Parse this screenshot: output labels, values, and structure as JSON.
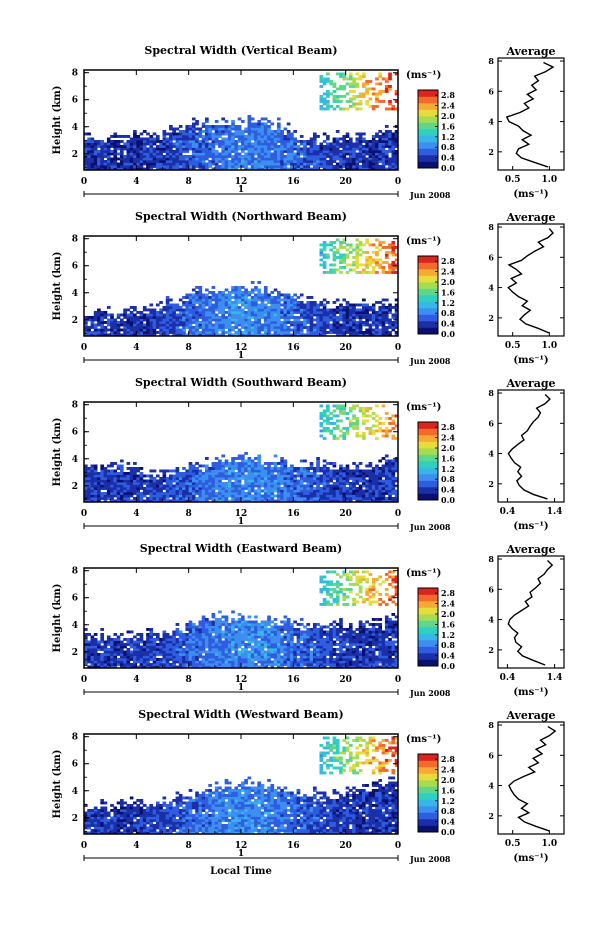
{
  "figure": {
    "x_axis_label": "Local Time",
    "date_label": "Jun 2008",
    "day_marker": "1",
    "height_axis_label": "Height (km)",
    "unit_label": "(ms⁻¹)",
    "avg_title": "Average",
    "avg_xlabel": "(ms⁻¹)"
  },
  "colormap": [
    "#0b1070",
    "#1a2fa8",
    "#2f5de0",
    "#3c8ef0",
    "#38b6e8",
    "#2ed0c0",
    "#5fd68a",
    "#a8dc50",
    "#e6dc3c",
    "#f7a934",
    "#f36a2c",
    "#d92420"
  ],
  "chart_data": [
    {
      "type": "heatmap",
      "title": "Spectral Width (Vertical Beam)",
      "xlabel": "",
      "ylabel": "Height (km)",
      "x_ticks": [
        "0",
        "4",
        "8",
        "12",
        "16",
        "20",
        "0"
      ],
      "x_range": [
        0,
        24
      ],
      "y_ticks": [
        "2",
        "4",
        "6",
        "8"
      ],
      "y_range": [
        0.8,
        8.2
      ],
      "colorbar": {
        "label": "(ms⁻¹)",
        "ticks": [
          "0.0",
          "0.4",
          "0.8",
          "1.2",
          "1.6",
          "2.0",
          "2.4",
          "2.8"
        ],
        "range": [
          0,
          3.0
        ]
      },
      "mean_width_by_hour": [
        0.4,
        0.39,
        0.38,
        0.38,
        0.39,
        0.42,
        0.47,
        0.53,
        0.6,
        0.67,
        0.73,
        0.77,
        0.78,
        0.77,
        0.73,
        0.67,
        0.6,
        0.53,
        0.47,
        0.42,
        0.39,
        0.38,
        0.38,
        0.39
      ],
      "echo_top_km_by_hour": [
        3.0,
        3.0,
        3.0,
        3.0,
        3.0,
        3.1,
        3.4,
        3.6,
        3.9,
        4.0,
        4.1,
        4.1,
        4.2,
        4.0,
        3.9,
        3.6,
        3.2,
        3.0,
        3.0,
        3.0,
        3.0,
        3.0,
        3.3,
        3.7
      ],
      "upper_echo": {
        "hours": [
          18.0,
          24.0
        ],
        "heights_km": [
          5.2,
          8.0
        ],
        "width_ms": [
          1.2,
          2.9
        ]
      },
      "average_profile": {
        "title": "Average",
        "xlabel": "(ms⁻¹)",
        "x_ticks": [
          "0.5",
          "1.0"
        ],
        "x_range": [
          0.3,
          1.2
        ],
        "y_ticks": [
          "2",
          "4",
          "6",
          "8"
        ],
        "heights_km": [
          1.0,
          1.3,
          1.6,
          1.9,
          2.2,
          2.5,
          2.8,
          3.1,
          3.4,
          3.7,
          4.0,
          4.3,
          4.6,
          4.9,
          5.2,
          5.5,
          5.8,
          6.1,
          6.4,
          6.7,
          7.0,
          7.3,
          7.6,
          7.9
        ],
        "width_ms": [
          0.98,
          0.8,
          0.62,
          0.55,
          0.58,
          0.72,
          0.63,
          0.75,
          0.64,
          0.58,
          0.45,
          0.42,
          0.6,
          0.72,
          0.66,
          0.78,
          0.7,
          0.82,
          0.76,
          0.85,
          0.8,
          0.95,
          1.05,
          0.92
        ]
      }
    },
    {
      "type": "heatmap",
      "title": "Spectral Width (Northward Beam)",
      "xlabel": "",
      "ylabel": "Height (km)",
      "x_ticks": [
        "0",
        "4",
        "8",
        "12",
        "16",
        "20",
        "0"
      ],
      "x_range": [
        0,
        24
      ],
      "y_ticks": [
        "2",
        "4",
        "6",
        "8"
      ],
      "y_range": [
        0.8,
        8.2
      ],
      "colorbar": {
        "label": "(ms⁻¹)",
        "ticks": [
          "0.0",
          "0.4",
          "0.8",
          "1.2",
          "1.6",
          "2.0",
          "2.4",
          "2.8"
        ],
        "range": [
          0,
          3.0
        ]
      },
      "mean_width_by_hour": [
        0.42,
        0.4,
        0.39,
        0.39,
        0.41,
        0.45,
        0.51,
        0.58,
        0.66,
        0.73,
        0.79,
        0.83,
        0.84,
        0.82,
        0.77,
        0.7,
        0.62,
        0.55,
        0.48,
        0.43,
        0.4,
        0.39,
        0.4,
        0.41
      ],
      "echo_top_km_by_hour": [
        2.3,
        2.3,
        2.3,
        2.4,
        2.5,
        2.7,
        3.0,
        3.4,
        3.8,
        4.0,
        4.0,
        4.1,
        4.2,
        4.1,
        3.9,
        3.6,
        3.4,
        3.2,
        3.0,
        3.0,
        3.0,
        3.0,
        3.1,
        3.3
      ],
      "upper_echo": {
        "hours": [
          18.0,
          24.0
        ],
        "heights_km": [
          5.5,
          8.0
        ],
        "width_ms": [
          1.2,
          2.8
        ]
      },
      "average_profile": {
        "title": "Average",
        "xlabel": "(ms⁻¹)",
        "x_ticks": [
          "0.5",
          "1.0"
        ],
        "x_range": [
          0.3,
          1.2
        ],
        "y_ticks": [
          "2",
          "4",
          "6",
          "8"
        ],
        "heights_km": [
          1.0,
          1.3,
          1.6,
          1.9,
          2.2,
          2.5,
          2.8,
          3.1,
          3.4,
          3.7,
          4.0,
          4.3,
          4.6,
          4.9,
          5.2,
          5.5,
          5.8,
          6.1,
          6.4,
          6.7,
          7.0,
          7.3,
          7.6,
          7.9
        ],
        "width_ms": [
          1.0,
          0.85,
          0.68,
          0.6,
          0.66,
          0.74,
          0.63,
          0.7,
          0.58,
          0.5,
          0.44,
          0.55,
          0.48,
          0.62,
          0.55,
          0.45,
          0.62,
          0.7,
          0.8,
          0.92,
          0.85,
          0.98,
          1.05,
          1.0
        ]
      }
    },
    {
      "type": "heatmap",
      "title": "Spectral Width (Southward Beam)",
      "xlabel": "",
      "ylabel": "Height (km)",
      "x_ticks": [
        "0",
        "4",
        "8",
        "12",
        "16",
        "20",
        "0"
      ],
      "x_range": [
        0,
        24
      ],
      "y_ticks": [
        "2",
        "4",
        "6",
        "8"
      ],
      "y_range": [
        0.8,
        8.2
      ],
      "colorbar": {
        "label": "(ms⁻¹)",
        "ticks": [
          "0.0",
          "0.4",
          "0.8",
          "1.2",
          "1.6",
          "2.0",
          "2.4",
          "2.8"
        ],
        "range": [
          0,
          3.0
        ]
      },
      "mean_width_by_hour": [
        0.45,
        0.43,
        0.42,
        0.42,
        0.44,
        0.48,
        0.54,
        0.61,
        0.68,
        0.75,
        0.8,
        0.83,
        0.84,
        0.82,
        0.78,
        0.72,
        0.65,
        0.58,
        0.51,
        0.46,
        0.43,
        0.42,
        0.43,
        0.44
      ],
      "echo_top_km_by_hour": [
        3.2,
        3.3,
        3.3,
        3.2,
        2.9,
        2.7,
        2.8,
        3.0,
        3.2,
        3.4,
        3.6,
        3.8,
        3.9,
        3.7,
        3.6,
        3.5,
        3.5,
        3.5,
        3.4,
        3.3,
        3.3,
        3.3,
        3.5,
        3.8
      ],
      "upper_echo": {
        "hours": [
          18.0,
          24.0
        ],
        "heights_km": [
          5.5,
          8.0
        ],
        "width_ms": [
          1.2,
          2.6
        ]
      },
      "average_profile": {
        "title": "Average",
        "xlabel": "(ms⁻¹)",
        "x_ticks": [
          "0.4",
          "1.4"
        ],
        "x_range": [
          0.2,
          1.6
        ],
        "y_ticks": [
          "2",
          "4",
          "6",
          "8"
        ],
        "heights_km": [
          1.0,
          1.3,
          1.6,
          1.9,
          2.2,
          2.5,
          2.8,
          3.1,
          3.4,
          3.7,
          4.0,
          4.3,
          4.6,
          4.9,
          5.2,
          5.5,
          5.8,
          6.1,
          6.4,
          6.7,
          7.0,
          7.3,
          7.6,
          7.9
        ],
        "width_ms": [
          1.25,
          0.95,
          0.75,
          0.65,
          0.6,
          0.7,
          0.62,
          0.68,
          0.55,
          0.48,
          0.42,
          0.5,
          0.62,
          0.75,
          0.7,
          0.82,
          0.88,
          0.95,
          1.05,
          1.1,
          1.02,
          1.2,
          1.3,
          1.2
        ]
      }
    },
    {
      "type": "heatmap",
      "title": "Spectral Width (Eastward Beam)",
      "xlabel": "",
      "ylabel": "Height (km)",
      "x_ticks": [
        "0",
        "4",
        "8",
        "12",
        "16",
        "20",
        "0"
      ],
      "x_range": [
        0,
        24
      ],
      "y_ticks": [
        "2",
        "4",
        "6",
        "8"
      ],
      "y_range": [
        0.8,
        8.2
      ],
      "colorbar": {
        "label": "(ms⁻¹)",
        "ticks": [
          "0.0",
          "0.4",
          "0.8",
          "1.2",
          "1.6",
          "2.0",
          "2.4",
          "2.8"
        ],
        "range": [
          0,
          3.0
        ]
      },
      "mean_width_by_hour": [
        0.44,
        0.42,
        0.41,
        0.41,
        0.43,
        0.47,
        0.53,
        0.6,
        0.68,
        0.75,
        0.81,
        0.85,
        0.86,
        0.84,
        0.79,
        0.72,
        0.64,
        0.57,
        0.5,
        0.45,
        0.42,
        0.41,
        0.42,
        0.43
      ],
      "echo_top_km_by_hour": [
        3.0,
        3.0,
        2.9,
        2.9,
        3.0,
        3.2,
        3.4,
        3.6,
        3.9,
        4.2,
        4.3,
        4.3,
        4.3,
        4.2,
        4.1,
        4.0,
        3.9,
        3.8,
        3.8,
        3.8,
        3.8,
        3.9,
        4.0,
        4.2
      ],
      "upper_echo": {
        "hours": [
          18.0,
          24.0
        ],
        "heights_km": [
          5.5,
          8.0
        ],
        "width_ms": [
          1.2,
          2.8
        ]
      },
      "average_profile": {
        "title": "Average",
        "xlabel": "(ms⁻¹)",
        "x_ticks": [
          "0.4",
          "1.4"
        ],
        "x_range": [
          0.2,
          1.6
        ],
        "y_ticks": [
          "2",
          "4",
          "6",
          "8"
        ],
        "heights_km": [
          1.0,
          1.3,
          1.6,
          1.9,
          2.2,
          2.5,
          2.8,
          3.1,
          3.4,
          3.7,
          4.0,
          4.3,
          4.6,
          4.9,
          5.2,
          5.5,
          5.8,
          6.1,
          6.4,
          6.7,
          7.0,
          7.3,
          7.6,
          7.9
        ],
        "width_ms": [
          1.2,
          0.95,
          0.72,
          0.62,
          0.7,
          0.58,
          0.55,
          0.62,
          0.5,
          0.42,
          0.45,
          0.55,
          0.7,
          0.85,
          0.78,
          0.92,
          0.88,
          1.0,
          1.1,
          1.05,
          1.18,
          1.25,
          1.35,
          1.25
        ]
      }
    },
    {
      "type": "heatmap",
      "title": "Spectral Width (Westward Beam)",
      "xlabel": "Local Time",
      "ylabel": "Height (km)",
      "x_ticks": [
        "0",
        "4",
        "8",
        "12",
        "16",
        "20",
        "0"
      ],
      "x_range": [
        0,
        24
      ],
      "y_ticks": [
        "2",
        "4",
        "6",
        "8"
      ],
      "y_range": [
        0.8,
        8.2
      ],
      "colorbar": {
        "label": "(ms⁻¹)",
        "ticks": [
          "0.0",
          "0.4",
          "0.8",
          "1.2",
          "1.6",
          "2.0",
          "2.4",
          "2.8"
        ],
        "range": [
          0,
          3.0
        ]
      },
      "mean_width_by_hour": [
        0.43,
        0.41,
        0.4,
        0.4,
        0.42,
        0.46,
        0.52,
        0.59,
        0.67,
        0.74,
        0.8,
        0.84,
        0.85,
        0.83,
        0.78,
        0.71,
        0.63,
        0.56,
        0.49,
        0.44,
        0.41,
        0.4,
        0.41,
        0.42
      ],
      "echo_top_km_by_hour": [
        2.6,
        2.7,
        2.8,
        2.8,
        2.8,
        2.8,
        3.0,
        3.3,
        3.6,
        3.9,
        4.1,
        4.3,
        4.4,
        4.3,
        4.1,
        3.9,
        3.7,
        3.5,
        3.4,
        3.4,
        3.6,
        3.9,
        4.2,
        4.5
      ],
      "upper_echo": {
        "hours": [
          18.0,
          24.0
        ],
        "heights_km": [
          5.2,
          8.0
        ],
        "width_ms": [
          1.2,
          2.8
        ]
      },
      "average_profile": {
        "title": "Average",
        "xlabel": "(ms⁻¹)",
        "x_ticks": [
          "0.5",
          "1.0"
        ],
        "x_range": [
          0.3,
          1.2
        ],
        "y_ticks": [
          "2",
          "4",
          "6",
          "8"
        ],
        "heights_km": [
          1.0,
          1.3,
          1.6,
          1.9,
          2.2,
          2.5,
          2.8,
          3.1,
          3.4,
          3.7,
          4.0,
          4.3,
          4.6,
          4.9,
          5.2,
          5.5,
          5.8,
          6.1,
          6.4,
          6.7,
          7.0,
          7.3,
          7.6,
          7.9
        ],
        "width_ms": [
          1.0,
          0.82,
          0.66,
          0.58,
          0.72,
          0.62,
          0.7,
          0.58,
          0.52,
          0.48,
          0.45,
          0.52,
          0.65,
          0.8,
          0.72,
          0.85,
          0.78,
          0.9,
          0.82,
          0.95,
          0.88,
          1.0,
          1.08,
          0.98
        ]
      }
    }
  ]
}
